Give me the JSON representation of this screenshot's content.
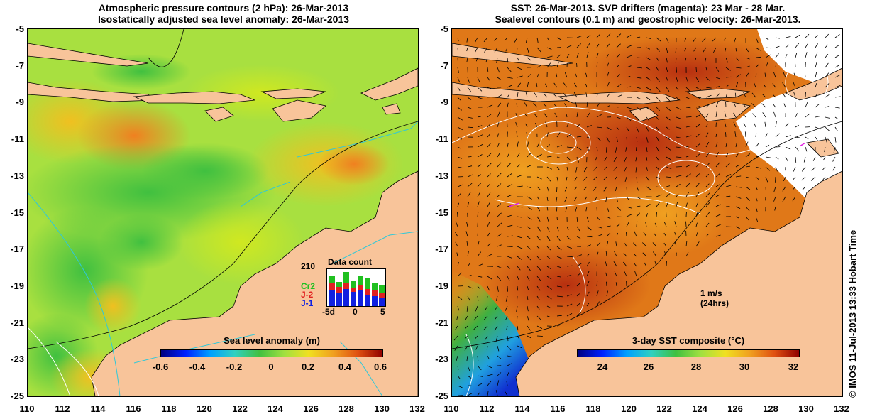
{
  "left_panel": {
    "title_line1": "Atmospheric pressure contours (2 hPa): 26-Mar-2013",
    "title_line2": "Isostatically adjusted sea level anomaly: 26-Mar-2013",
    "colorbar_title": "Sea level anomaly (m)",
    "colorbar_ticks": [
      "-0.6",
      "-0.4",
      "-0.2",
      "0",
      "0.2",
      "0.4",
      "0.6"
    ],
    "inset": {
      "title": "Data count",
      "max_label": "210",
      "labels": [
        "Cr2",
        "J-2",
        "J-1"
      ],
      "x_ticks": [
        "-5d",
        "0",
        "5"
      ],
      "label_colors": [
        "#20c020",
        "#e02020",
        "#1020e0"
      ]
    }
  },
  "right_panel": {
    "title_line1": "SST: 26-Mar-2013. SVP drifters (magenta): 23 Mar - 28 Mar.",
    "title_line2": "Sealevel contours (0.1 m) and geostrophic velocity: 26-Mar-2013.",
    "colorbar_title": "3-day SST composite (°C)",
    "colorbar_ticks": [
      "24",
      "26",
      "28",
      "30",
      "32"
    ],
    "scale_label": "1 m/s",
    "scale_sublabel": "(24hrs)"
  },
  "y_ticks": [
    "-5",
    "-7",
    "-9",
    "-11",
    "-13",
    "-15",
    "-17",
    "-19",
    "-21",
    "-23",
    "-25"
  ],
  "x_ticks": [
    "110",
    "112",
    "114",
    "116",
    "118",
    "120",
    "122",
    "124",
    "126",
    "128",
    "130",
    "132"
  ],
  "copyright": "© IMOS 11-Jul-2013 13:33 Hobart Time",
  "colors": {
    "land": "#f8c49a",
    "sla_bg": "#a8e040",
    "sst_bg": "#e07818"
  }
}
